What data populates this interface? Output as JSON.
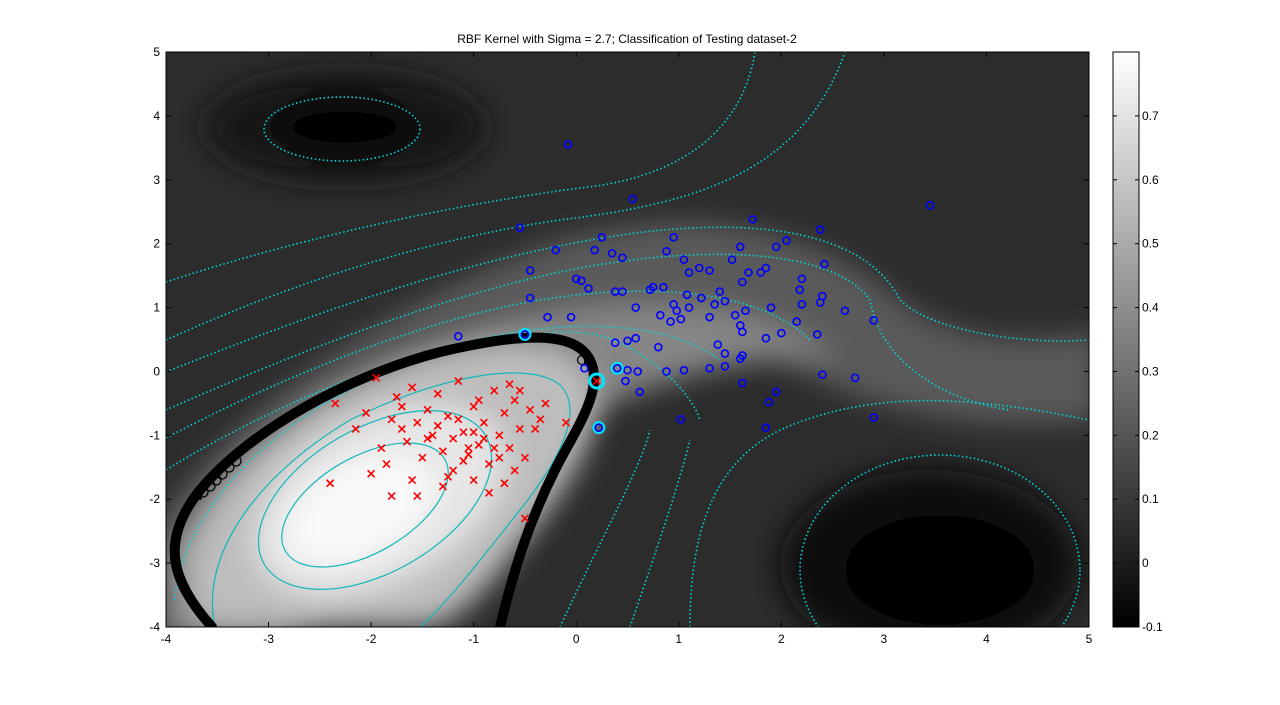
{
  "chart_data": {
    "type": "scatter",
    "title": "RBF Kernel with Sigma = 2.7; Classification of Testing dataset-2",
    "xlabel": "",
    "ylabel": "",
    "xlim": [
      -4,
      5
    ],
    "ylim": [
      -4,
      5
    ],
    "xticks": [
      "-4",
      "-3",
      "-2",
      "-1",
      "0",
      "1",
      "2",
      "3",
      "4",
      "5"
    ],
    "yticks": [
      "-4",
      "-3",
      "-2",
      "-1",
      "0",
      "1",
      "2",
      "3",
      "4",
      "5"
    ],
    "background": "grayscale decision-value surface (filled contour)",
    "colorbar": {
      "range": [
        -0.1,
        0.8
      ],
      "ticks": [
        "-0.1",
        "0",
        "0.1",
        "0.2",
        "0.3",
        "0.4",
        "0.5",
        "0.6",
        "0.7"
      ],
      "colormap": "gray"
    },
    "contours": {
      "color": "#00d8d8",
      "style": "dotted",
      "decision_boundary_color": "#000000"
    },
    "grid": false,
    "series": [
      {
        "marker": "x",
        "color": "#ff0000",
        "points": [
          [
            -2.35,
            -0.5
          ],
          [
            -2.15,
            -0.9
          ],
          [
            -2.05,
            -0.65
          ],
          [
            -1.95,
            -0.1
          ],
          [
            -1.85,
            -1.45
          ],
          [
            -1.8,
            -0.75
          ],
          [
            -1.75,
            -0.4
          ],
          [
            -1.7,
            -0.55
          ],
          [
            -1.65,
            -1.1
          ],
          [
            -1.6,
            -0.25
          ],
          [
            -1.55,
            -0.8
          ],
          [
            -1.5,
            -1.35
          ],
          [
            -1.45,
            -0.6
          ],
          [
            -1.4,
            -1.0
          ],
          [
            -1.35,
            -0.35
          ],
          [
            -1.3,
            -1.25
          ],
          [
            -1.25,
            -0.7
          ],
          [
            -1.2,
            -1.55
          ],
          [
            -1.15,
            -0.15
          ],
          [
            -1.1,
            -0.95
          ],
          [
            -1.05,
            -1.3
          ],
          [
            -1.0,
            -0.55
          ],
          [
            -0.95,
            -1.15
          ],
          [
            -0.9,
            -0.8
          ],
          [
            -0.85,
            -1.45
          ],
          [
            -0.8,
            -0.3
          ],
          [
            -0.75,
            -1.0
          ],
          [
            -0.7,
            -0.65
          ],
          [
            -0.65,
            -1.2
          ],
          [
            -0.6,
            -0.45
          ],
          [
            -0.55,
            -0.9
          ],
          [
            -0.5,
            -1.35
          ],
          [
            -0.45,
            -0.6
          ],
          [
            -1.9,
            -1.2
          ],
          [
            -2.0,
            -1.6
          ],
          [
            -1.6,
            -1.7
          ],
          [
            -1.3,
            -1.8
          ],
          [
            -1.1,
            -1.4
          ],
          [
            -1.0,
            -1.7
          ],
          [
            -0.85,
            -1.9
          ],
          [
            -0.6,
            -1.55
          ],
          [
            -1.45,
            -1.05
          ],
          [
            -1.25,
            -1.65
          ],
          [
            -1.55,
            -1.95
          ],
          [
            -1.05,
            -1.2
          ],
          [
            -0.95,
            -0.45
          ],
          [
            -0.7,
            -1.75
          ],
          [
            -0.55,
            -0.3
          ],
          [
            -2.4,
            -1.75
          ],
          [
            -1.8,
            -1.95
          ],
          [
            -1.35,
            -0.85
          ],
          [
            -1.15,
            -0.75
          ],
          [
            -0.9,
            -1.05
          ],
          [
            -0.75,
            -1.35
          ],
          [
            -0.4,
            -0.9
          ],
          [
            -0.35,
            -0.75
          ],
          [
            -1.0,
            -0.95
          ],
          [
            -0.8,
            -1.2
          ],
          [
            -1.2,
            -1.05
          ],
          [
            -0.65,
            -0.2
          ],
          [
            -0.1,
            -0.8
          ],
          [
            -0.5,
            -2.3
          ],
          [
            0.2,
            -0.15
          ],
          [
            -0.3,
            -0.5
          ],
          [
            -1.7,
            -0.9
          ]
        ]
      },
      {
        "marker": "o",
        "color": "#0000ff",
        "points": [
          [
            -0.08,
            3.55
          ],
          [
            0.55,
            2.7
          ],
          [
            3.45,
            2.6
          ],
          [
            -0.55,
            2.25
          ],
          [
            1.72,
            2.38
          ],
          [
            0.25,
            2.1
          ],
          [
            0.95,
            2.1
          ],
          [
            -0.2,
            1.9
          ],
          [
            0.18,
            1.9
          ],
          [
            0.35,
            1.85
          ],
          [
            0.88,
            1.88
          ],
          [
            1.05,
            1.75
          ],
          [
            1.3,
            1.58
          ],
          [
            1.52,
            1.75
          ],
          [
            1.6,
            1.95
          ],
          [
            1.85,
            1.62
          ],
          [
            2.05,
            2.05
          ],
          [
            2.38,
            2.22
          ],
          [
            2.42,
            1.68
          ],
          [
            -0.45,
            1.58
          ],
          [
            0.45,
            1.78
          ],
          [
            0.0,
            1.45
          ],
          [
            0.05,
            1.42
          ],
          [
            0.75,
            1.32
          ],
          [
            0.85,
            1.32
          ],
          [
            1.1,
            1.55
          ],
          [
            1.2,
            1.62
          ],
          [
            1.4,
            1.25
          ],
          [
            1.68,
            1.55
          ],
          [
            2.2,
            1.45
          ],
          [
            2.18,
            1.28
          ],
          [
            0.12,
            1.3
          ],
          [
            0.38,
            1.25
          ],
          [
            0.45,
            1.25
          ],
          [
            0.72,
            1.28
          ],
          [
            0.95,
            1.05
          ],
          [
            1.08,
            1.2
          ],
          [
            1.22,
            1.15
          ],
          [
            1.35,
            1.05
          ],
          [
            1.45,
            1.1
          ],
          [
            1.62,
            1.4
          ],
          [
            1.8,
            1.55
          ],
          [
            1.95,
            1.95
          ],
          [
            2.2,
            1.05
          ],
          [
            2.38,
            1.08
          ],
          [
            2.4,
            1.18
          ],
          [
            -0.45,
            1.15
          ],
          [
            -0.28,
            0.85
          ],
          [
            -0.05,
            0.85
          ],
          [
            0.58,
            1.0
          ],
          [
            0.82,
            0.88
          ],
          [
            0.98,
            0.95
          ],
          [
            1.1,
            1.0
          ],
          [
            1.3,
            0.85
          ],
          [
            1.55,
            0.88
          ],
          [
            1.65,
            0.95
          ],
          [
            1.9,
            1.0
          ],
          [
            2.15,
            0.78
          ],
          [
            2.35,
            0.58
          ],
          [
            2.62,
            0.95
          ],
          [
            2.9,
            0.8
          ],
          [
            -1.15,
            0.55
          ],
          [
            -0.5,
            0.58
          ],
          [
            0.38,
            0.45
          ],
          [
            0.5,
            0.48
          ],
          [
            0.58,
            0.52
          ],
          [
            0.8,
            0.38
          ],
          [
            0.92,
            0.78
          ],
          [
            1.02,
            0.82
          ],
          [
            1.38,
            0.42
          ],
          [
            1.45,
            0.28
          ],
          [
            1.62,
            0.62
          ],
          [
            1.6,
            0.72
          ],
          [
            1.85,
            0.52
          ],
          [
            2.0,
            0.6
          ],
          [
            0.08,
            0.05
          ],
          [
            0.4,
            0.05
          ],
          [
            0.5,
            0.02
          ],
          [
            0.6,
            0.0
          ],
          [
            0.88,
            0.0
          ],
          [
            1.05,
            0.02
          ],
          [
            1.3,
            0.05
          ],
          [
            1.45,
            0.08
          ],
          [
            1.6,
            0.2
          ],
          [
            1.62,
            0.25
          ],
          [
            2.4,
            -0.05
          ],
          [
            2.72,
            -0.1
          ],
          [
            1.62,
            -0.18
          ],
          [
            0.48,
            -0.15
          ],
          [
            0.62,
            -0.32
          ],
          [
            1.95,
            -0.32
          ],
          [
            1.88,
            -0.48
          ],
          [
            2.9,
            -0.72
          ],
          [
            1.02,
            -0.75
          ],
          [
            1.85,
            -0.88
          ],
          [
            0.22,
            -0.88
          ]
        ]
      }
    ],
    "support_vectors": [
      [
        -0.5,
        0.58
      ],
      [
        0.2,
        -0.15
      ],
      [
        0.4,
        0.05
      ],
      [
        0.22,
        -0.88
      ]
    ]
  }
}
